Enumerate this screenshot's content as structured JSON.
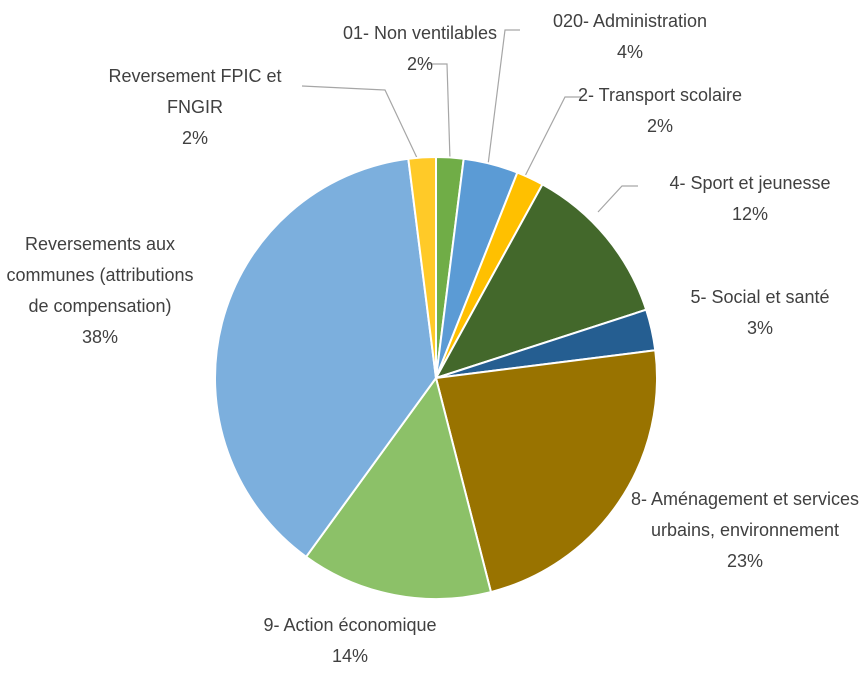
{
  "chart_data": {
    "type": "pie",
    "categories": [
      "01- Non ventilables",
      "020- Administration",
      "2- Transport scolaire",
      "4- Sport et jeunesse",
      "5- Social et santé",
      "8- Aménagement et services urbains, environnement",
      "9- Action économique",
      "Reversements aux communes (attributions de compensation)",
      "Reversement FPIC et FNGIR"
    ],
    "values": [
      2,
      4,
      2,
      12,
      3,
      23,
      14,
      38,
      2
    ],
    "value_labels": [
      "2%",
      "4%",
      "2%",
      "12%",
      "3%",
      "23%",
      "14%",
      "38%",
      "2%"
    ],
    "colors": [
      "#70ad47",
      "#5b9bd5",
      "#ffc000",
      "#43682b",
      "#255e91",
      "#997300",
      "#8cc168",
      "#7cafdd",
      "#ffca28"
    ]
  }
}
